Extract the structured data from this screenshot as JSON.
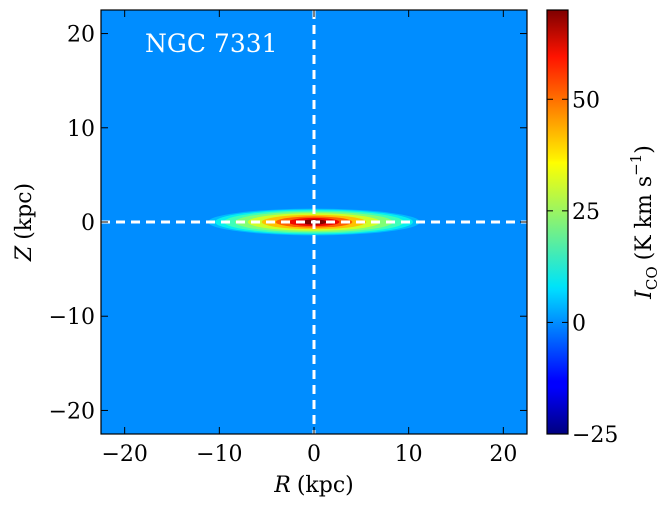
{
  "chart_data": {
    "type": "heatmap",
    "annotation": "NGC 7331",
    "xlabel": {
      "var": "R",
      "unit": "(kpc)"
    },
    "ylabel": {
      "var": "Z",
      "unit": "(kpc)"
    },
    "xlim": [
      -22.5,
      22.5
    ],
    "ylim": [
      -22.5,
      22.5
    ],
    "xticks": [
      -20,
      -10,
      0,
      10,
      20
    ],
    "yticks": [
      -20,
      -10,
      0,
      10,
      20
    ],
    "xtick_labels": [
      "−20",
      "−10",
      "0",
      "10",
      "20"
    ],
    "ytick_labels": [
      "−20",
      "−10",
      "0",
      "10",
      "20"
    ],
    "colorbar": {
      "label_var": "I",
      "label_sub": "CO",
      "label_unit": "(K km s",
      "label_exp": "−1",
      "label_close": ")",
      "min": -25,
      "max": 70,
      "ticks": [
        -25,
        0,
        25,
        50
      ],
      "tick_labels": [
        "−25",
        "0",
        "25",
        "50"
      ],
      "colormap": "jet"
    },
    "background_value": 0,
    "disk": {
      "peak_value": 70,
      "center": [
        0,
        0
      ],
      "scale_radius_kpc": 6,
      "scale_height_kpc": 0.6
    },
    "guide_lines": [
      {
        "orientation": "vertical",
        "at": 0,
        "style": "dashed",
        "color": "#ffffff"
      },
      {
        "orientation": "horizontal",
        "at": 0,
        "style": "dashed",
        "color": "#ffffff"
      }
    ]
  }
}
